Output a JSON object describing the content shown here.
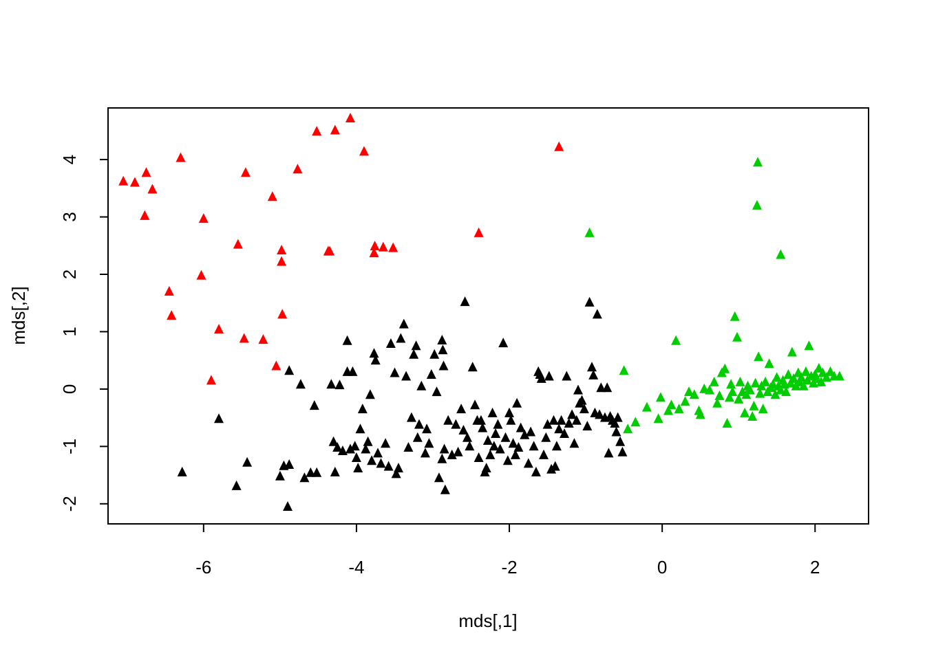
{
  "chart_data": {
    "type": "scatter",
    "title": "",
    "xlabel": "mds[,1]",
    "ylabel": "mds[,2]",
    "xlim": [
      -7.25,
      2.7
    ],
    "ylim": [
      -2.35,
      4.9
    ],
    "xticks": [
      -6,
      -4,
      -2,
      0,
      2
    ],
    "xtick_labels": [
      "-6",
      "-4",
      "-2",
      "0",
      "2"
    ],
    "yticks": [
      -2,
      -1,
      0,
      1,
      2,
      3,
      4
    ],
    "ytick_labels": [
      "-2",
      "-1",
      "0",
      "1",
      "2",
      "3",
      "4"
    ],
    "marker": "filled-triangle",
    "grid": false,
    "legend": "none",
    "series": [
      {
        "color": "#ff0000",
        "points": [
          [
            -7.05,
            3.62
          ],
          [
            -6.9,
            3.6
          ],
          [
            -6.75,
            3.77
          ],
          [
            -6.67,
            3.48
          ],
          [
            -6.77,
            3.02
          ],
          [
            -6.3,
            4.03
          ],
          [
            -6.45,
            1.7
          ],
          [
            -6.42,
            1.28
          ],
          [
            -6.0,
            2.97
          ],
          [
            -6.03,
            1.98
          ],
          [
            -5.8,
            1.04
          ],
          [
            -5.9,
            0.15
          ],
          [
            -5.55,
            2.52
          ],
          [
            -5.45,
            3.77
          ],
          [
            -5.47,
            0.88
          ],
          [
            -5.22,
            0.86
          ],
          [
            -5.1,
            3.35
          ],
          [
            -5.05,
            0.4
          ],
          [
            -4.98,
            2.42
          ],
          [
            -4.98,
            2.22
          ],
          [
            -4.97,
            1.3
          ],
          [
            -4.77,
            3.83
          ],
          [
            -4.52,
            4.49
          ],
          [
            -4.37,
            2.4
          ],
          [
            -4.35,
            2.4
          ],
          [
            -4.28,
            4.51
          ],
          [
            -4.08,
            4.72
          ],
          [
            -3.9,
            4.14
          ],
          [
            -3.76,
            2.49
          ],
          [
            -3.77,
            2.37
          ],
          [
            -3.65,
            2.47
          ],
          [
            -3.52,
            2.46
          ],
          [
            -2.4,
            2.72
          ],
          [
            -1.35,
            4.22
          ]
        ]
      },
      {
        "color": "#000000",
        "points": [
          [
            -6.28,
            -1.45
          ],
          [
            -5.8,
            -0.52
          ],
          [
            -5.57,
            -1.69
          ],
          [
            -5.43,
            -1.28
          ],
          [
            -5.0,
            -1.52
          ],
          [
            -4.95,
            -1.34
          ],
          [
            -4.88,
            -1.32
          ],
          [
            -4.88,
            0.32
          ],
          [
            -4.9,
            -2.05
          ],
          [
            -4.73,
            0.08
          ],
          [
            -4.68,
            -1.55
          ],
          [
            -4.6,
            -1.46
          ],
          [
            -4.52,
            -1.46
          ],
          [
            -4.55,
            -0.29
          ],
          [
            -4.33,
            0.08
          ],
          [
            -4.3,
            -0.92
          ],
          [
            -4.25,
            -1.02
          ],
          [
            -4.28,
            -1.45
          ],
          [
            -4.22,
            0.07
          ],
          [
            -4.18,
            -1.08
          ],
          [
            -4.12,
            0.84
          ],
          [
            -4.12,
            0.3
          ],
          [
            -4.08,
            -1.05
          ],
          [
            -4.05,
            0.3
          ],
          [
            -4.02,
            -1.0
          ],
          [
            -4.0,
            -1.2
          ],
          [
            -3.98,
            -1.38
          ],
          [
            -3.95,
            -0.7
          ],
          [
            -3.92,
            -0.35
          ],
          [
            -3.88,
            -1.05
          ],
          [
            -3.85,
            -0.92
          ],
          [
            -3.82,
            -0.1
          ],
          [
            -3.8,
            -1.25
          ],
          [
            -3.77,
            0.62
          ],
          [
            -3.75,
            0.5
          ],
          [
            -3.72,
            -1.12
          ],
          [
            -3.68,
            -1.3
          ],
          [
            -3.62,
            -0.95
          ],
          [
            -3.58,
            -1.35
          ],
          [
            -3.55,
            0.79
          ],
          [
            -3.5,
            0.28
          ],
          [
            -3.48,
            -1.48
          ],
          [
            -3.45,
            -1.38
          ],
          [
            -3.42,
            0.88
          ],
          [
            -3.38,
            1.13
          ],
          [
            -3.35,
            0.22
          ],
          [
            -3.32,
            -1.02
          ],
          [
            -3.28,
            -0.5
          ],
          [
            -3.25,
            0.6
          ],
          [
            -3.22,
            0.75
          ],
          [
            -3.2,
            -0.85
          ],
          [
            -3.18,
            -0.62
          ],
          [
            -3.15,
            0.05
          ],
          [
            -3.1,
            -1.12
          ],
          [
            -3.08,
            -0.7
          ],
          [
            -3.05,
            -0.95
          ],
          [
            -3.02,
            0.25
          ],
          [
            -2.98,
            0.6
          ],
          [
            -2.95,
            -0.05
          ],
          [
            -2.92,
            -1.55
          ],
          [
            -2.88,
            -1.22
          ],
          [
            -2.85,
            -1.05
          ],
          [
            -2.8,
            -0.55
          ],
          [
            -2.75,
            -1.15
          ],
          [
            -2.88,
            0.85
          ],
          [
            -2.87,
            0.68
          ],
          [
            -2.86,
            0.4
          ],
          [
            -2.84,
            -1.76
          ],
          [
            -2.7,
            -0.62
          ],
          [
            -2.67,
            -1.1
          ],
          [
            -2.63,
            -0.35
          ],
          [
            -2.6,
            -0.72
          ],
          [
            -2.58,
            1.52
          ],
          [
            -2.55,
            -0.85
          ],
          [
            -2.52,
            -1.0
          ],
          [
            -2.48,
            0.38
          ],
          [
            -2.45,
            -0.28
          ],
          [
            -2.42,
            -0.55
          ],
          [
            -2.4,
            -1.2
          ],
          [
            -2.37,
            -0.55
          ],
          [
            -2.35,
            -0.68
          ],
          [
            -2.32,
            -1.45
          ],
          [
            -2.3,
            -1.38
          ],
          [
            -2.28,
            -0.9
          ],
          [
            -2.25,
            -1.15
          ],
          [
            -2.22,
            -0.42
          ],
          [
            -2.2,
            -1.0
          ],
          [
            -2.18,
            -0.78
          ],
          [
            -2.15,
            -0.62
          ],
          [
            -2.12,
            -1.05
          ],
          [
            -2.08,
            0.8
          ],
          [
            -2.05,
            -0.85
          ],
          [
            -2.02,
            -1.25
          ],
          [
            -2.0,
            -0.42
          ],
          [
            -1.98,
            -0.55
          ],
          [
            -1.95,
            -0.95
          ],
          [
            -1.92,
            -1.15
          ],
          [
            -1.9,
            -0.25
          ],
          [
            -1.88,
            -1.02
          ],
          [
            -1.85,
            -0.68
          ],
          [
            -1.8,
            -0.8
          ],
          [
            -1.75,
            -1.3
          ],
          [
            -1.72,
            -0.75
          ],
          [
            -1.68,
            -1.0
          ],
          [
            -1.65,
            -1.45
          ],
          [
            -1.62,
            0.3
          ],
          [
            -1.6,
            0.25
          ],
          [
            -1.58,
            0.18
          ],
          [
            -1.55,
            -1.15
          ],
          [
            -1.52,
            -0.85
          ],
          [
            -1.5,
            -0.62
          ],
          [
            -1.48,
            0.22
          ],
          [
            -1.45,
            -1.4
          ],
          [
            -1.42,
            -0.55
          ],
          [
            -1.4,
            -1.35
          ],
          [
            -1.38,
            -1.0
          ],
          [
            -1.35,
            -0.7
          ],
          [
            -1.32,
            -0.55
          ],
          [
            -1.28,
            -0.78
          ],
          [
            -1.25,
            0.22
          ],
          [
            -1.22,
            -0.6
          ],
          [
            -1.18,
            -0.45
          ],
          [
            -1.15,
            -0.95
          ],
          [
            -1.12,
            -0.55
          ],
          [
            -1.1,
            -0.02
          ],
          [
            -1.08,
            -0.25
          ],
          [
            -1.05,
            -0.2
          ],
          [
            -1.02,
            -0.35
          ],
          [
            -0.98,
            -0.65
          ],
          [
            -0.95,
            1.51
          ],
          [
            -0.92,
            0.38
          ],
          [
            -0.9,
            0.24
          ],
          [
            -0.88,
            -0.42
          ],
          [
            -0.85,
            1.3
          ],
          [
            -0.82,
            -0.45
          ],
          [
            -0.8,
            0.02
          ],
          [
            -0.75,
            -0.5
          ],
          [
            -0.72,
            0.02
          ],
          [
            -0.7,
            -1.12
          ],
          [
            -0.68,
            -0.48
          ],
          [
            -0.65,
            -0.55
          ],
          [
            -0.62,
            -0.6
          ],
          [
            -0.6,
            -0.75
          ],
          [
            -0.58,
            -0.5
          ],
          [
            -0.55,
            -0.92
          ],
          [
            -0.52,
            -1.1
          ]
        ]
      },
      {
        "color": "#00cd00",
        "points": [
          [
            -0.95,
            2.72
          ],
          [
            -0.5,
            0.32
          ],
          [
            -0.45,
            -0.7
          ],
          [
            -0.35,
            -0.58
          ],
          [
            -0.2,
            -0.32
          ],
          [
            -0.05,
            -0.52
          ],
          [
            -0.02,
            -0.15
          ],
          [
            0.08,
            -0.38
          ],
          [
            0.12,
            -0.28
          ],
          [
            0.18,
            0.84
          ],
          [
            0.22,
            -0.35
          ],
          [
            0.3,
            -0.22
          ],
          [
            0.35,
            -0.05
          ],
          [
            0.42,
            -0.1
          ],
          [
            0.48,
            -0.38
          ],
          [
            0.5,
            -0.45
          ],
          [
            0.55,
            0.0
          ],
          [
            0.62,
            -0.02
          ],
          [
            0.68,
            0.12
          ],
          [
            0.72,
            -0.25
          ],
          [
            0.75,
            -0.12
          ],
          [
            0.78,
            0.28
          ],
          [
            0.82,
            0.35
          ],
          [
            0.85,
            -0.6
          ],
          [
            0.88,
            -0.15
          ],
          [
            0.9,
            0.08
          ],
          [
            0.92,
            -0.05
          ],
          [
            0.95,
            1.26
          ],
          [
            0.98,
            0.9
          ],
          [
            1.0,
            -0.18
          ],
          [
            1.02,
            0.12
          ],
          [
            1.05,
            -0.05
          ],
          [
            1.08,
            -0.42
          ],
          [
            1.1,
            -0.1
          ],
          [
            1.12,
            0.05
          ],
          [
            1.15,
            -0.02
          ],
          [
            1.18,
            -0.48
          ],
          [
            1.2,
            -0.3
          ],
          [
            1.22,
            0.1
          ],
          [
            1.25,
            3.95
          ],
          [
            1.24,
            3.2
          ],
          [
            1.26,
            0.56
          ],
          [
            1.28,
            -0.08
          ],
          [
            1.3,
            0.05
          ],
          [
            1.32,
            -0.35
          ],
          [
            1.35,
            0.12
          ],
          [
            1.38,
            -0.05
          ],
          [
            1.4,
            0.44
          ],
          [
            1.42,
            0.02
          ],
          [
            1.45,
            0.08
          ],
          [
            1.48,
            -0.1
          ],
          [
            1.5,
            0.2
          ],
          [
            1.52,
            0.05
          ],
          [
            1.55,
            2.34
          ],
          [
            1.55,
            -0.02
          ],
          [
            1.58,
            0.15
          ],
          [
            1.6,
            0.08
          ],
          [
            1.62,
            -0.05
          ],
          [
            1.65,
            0.25
          ],
          [
            1.68,
            0.1
          ],
          [
            1.7,
            0.64
          ],
          [
            1.72,
            0.18
          ],
          [
            1.75,
            0.05
          ],
          [
            1.78,
            0.28
          ],
          [
            1.8,
            0.12
          ],
          [
            1.82,
            0.2
          ],
          [
            1.85,
            0.05
          ],
          [
            1.88,
            0.3
          ],
          [
            1.9,
            0.15
          ],
          [
            1.92,
            0.75
          ],
          [
            1.95,
            0.22
          ],
          [
            1.98,
            0.1
          ],
          [
            2.0,
            0.25
          ],
          [
            2.02,
            0.18
          ],
          [
            2.05,
            0.36
          ],
          [
            2.08,
            0.12
          ],
          [
            2.1,
            0.28
          ],
          [
            2.15,
            0.2
          ],
          [
            2.2,
            0.3
          ],
          [
            2.25,
            0.22
          ],
          [
            2.32,
            0.22
          ]
        ]
      }
    ]
  }
}
